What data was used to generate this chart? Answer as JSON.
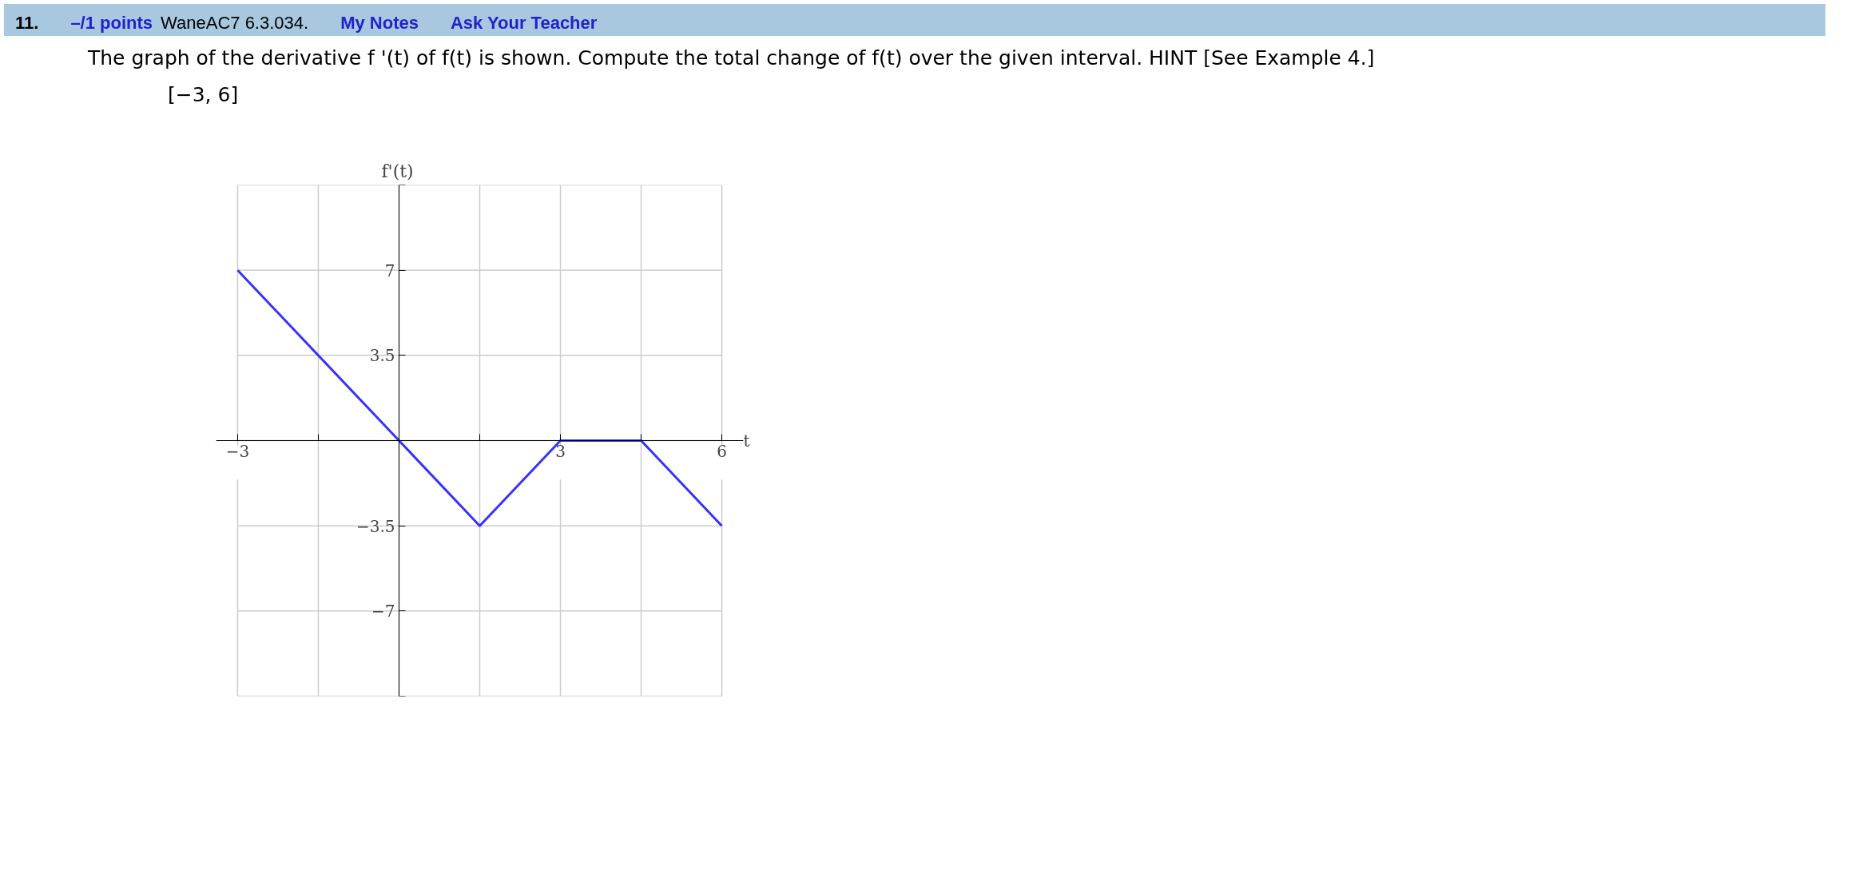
{
  "chart_data": {
    "type": "line",
    "title": "The graph of the derivative f '(t) of f(t) is shown. Compute the total change of f(t) over the given interval. HINT [See Example 4.]",
    "subtitle": "[−3, 6]",
    "xlabel": "t",
    "ylabel": "f'(t)",
    "annotations": [
      "11.",
      "–/1 points",
      "WaneAC7 6.3.034.",
      "My Notes",
      "Ask Your Teacher"
    ],
    "x": [
      -3,
      0,
      1.5,
      3,
      4.5,
      6
    ],
    "series": [
      {
        "color": "#3333ff",
        "values": [
          7,
          0,
          -3.5,
          0,
          0,
          -3.5
        ]
      }
    ],
    "xlim": [
      -3.4,
      6.4
    ],
    "ylim": [
      -10.5,
      10.5
    ],
    "xticks": [
      -3,
      {
        "value": -1.5,
        "label": null
      },
      {
        "value": 0,
        "label": null
      },
      {
        "value": 1.5,
        "label": null
      },
      3,
      {
        "value": 4.5,
        "label": null
      },
      6
    ],
    "yticks": [
      {
        "value": -10.5,
        "label": null
      },
      -7,
      -3.5,
      {
        "value": 0,
        "label": null
      },
      3.5,
      7,
      {
        "value": 10.5,
        "label": null
      }
    ],
    "grid": true,
    "marker": "none",
    "line_style": "solid"
  }
}
